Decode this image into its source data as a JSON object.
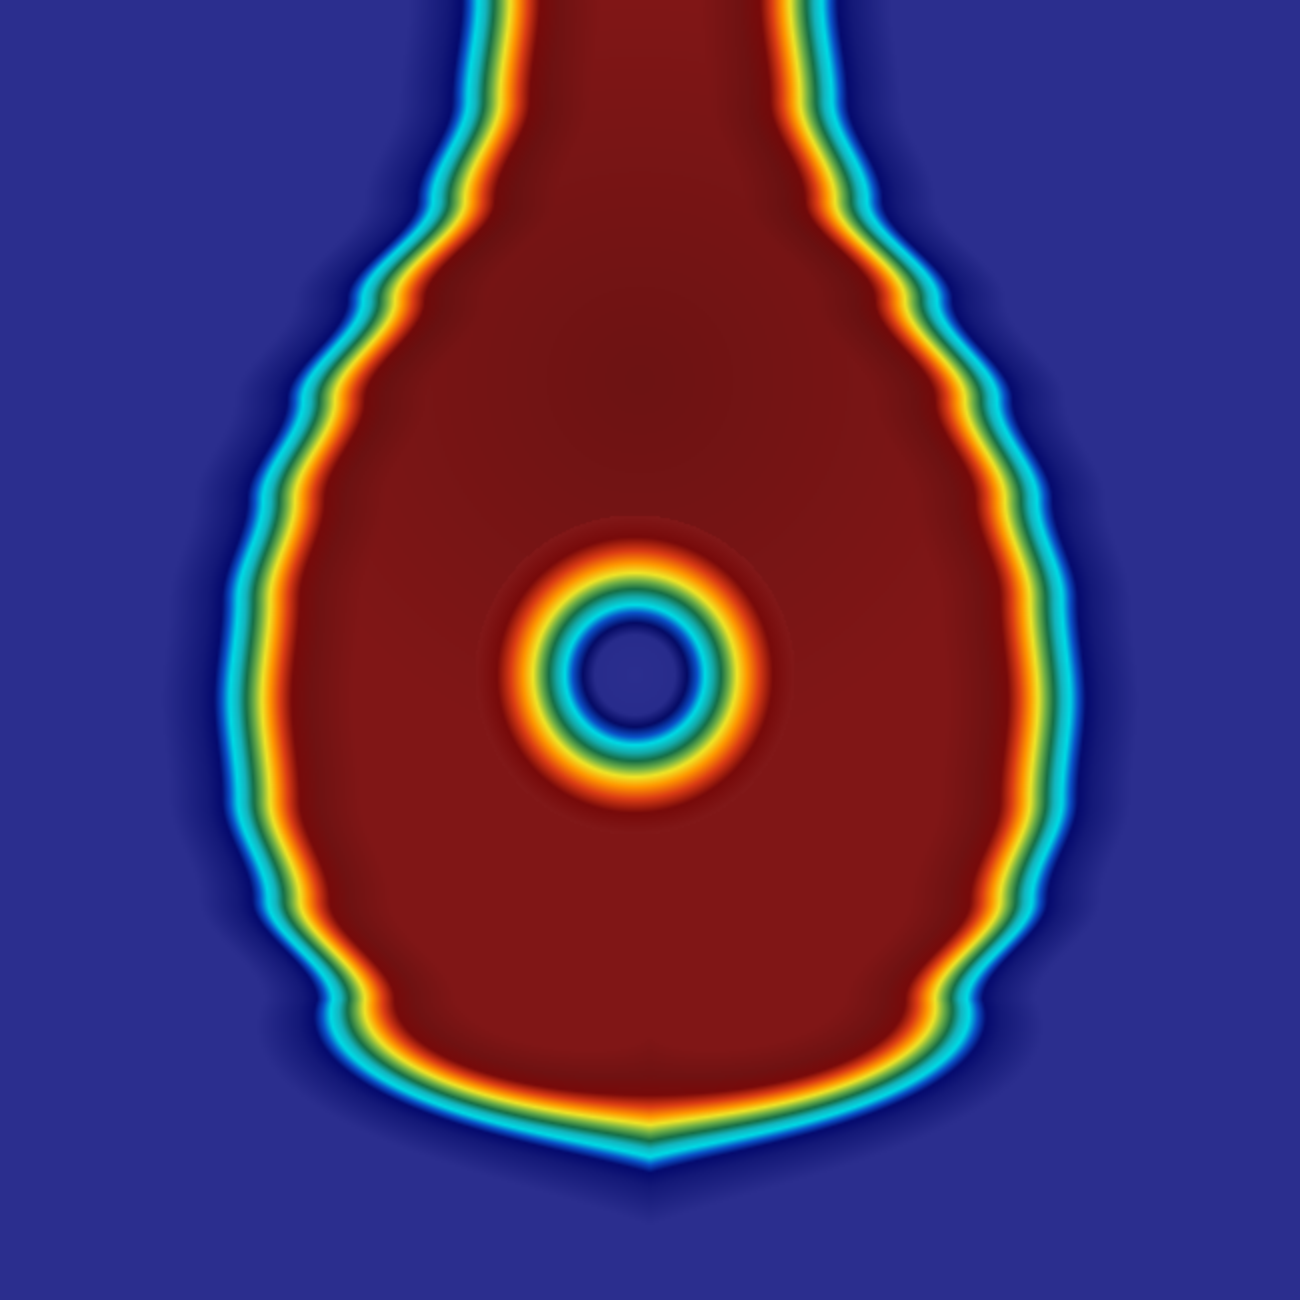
{
  "image": {
    "subject": "phase-field-contour-plot",
    "colors": {
      "background": "#2c2f8e",
      "interior": "#8b2626",
      "interior_dark": "#701515",
      "colormap": [
        "#00007f",
        "#0000d0",
        "#0040ff",
        "#00c8e8",
        "#1fa0a0",
        "#2a8a3a",
        "#b8c830",
        "#f8f01a",
        "#ff9a00",
        "#e84010",
        "#901010",
        "#7f0000"
      ]
    }
  }
}
